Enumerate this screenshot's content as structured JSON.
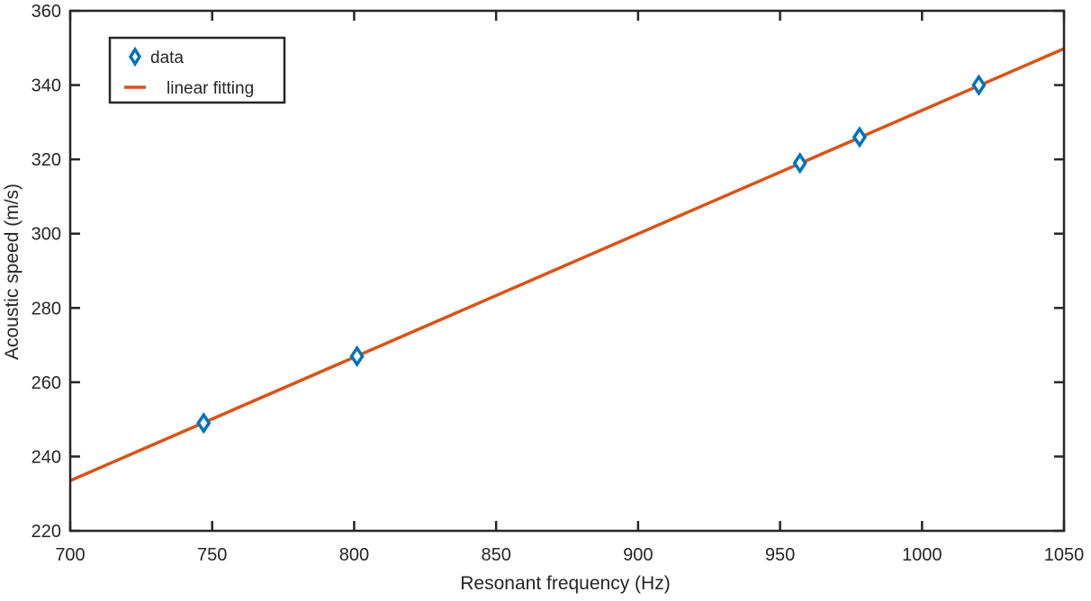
{
  "chart_data": {
    "type": "scatter",
    "xlabel": "Resonant frequency (Hz)",
    "ylabel": "Acoustic speed (m/s)",
    "xlim": [
      700,
      1050
    ],
    "ylim": [
      220,
      360
    ],
    "xticks": [
      700,
      750,
      800,
      850,
      900,
      950,
      1000,
      1050
    ],
    "yticks": [
      220,
      240,
      260,
      280,
      300,
      320,
      340,
      360
    ],
    "grid": false,
    "legend_position": "top-left",
    "series": [
      {
        "name": "data",
        "kind": "scatter",
        "marker": "diamond",
        "color": "#0072BD",
        "x": [
          747,
          801,
          957,
          978,
          1020
        ],
        "y": [
          249,
          267,
          319,
          326,
          340
        ]
      },
      {
        "name": "linear fitting",
        "kind": "line",
        "color": "#D95319",
        "x": [
          700,
          1050
        ],
        "y": [
          233.5,
          349.8
        ]
      }
    ]
  }
}
